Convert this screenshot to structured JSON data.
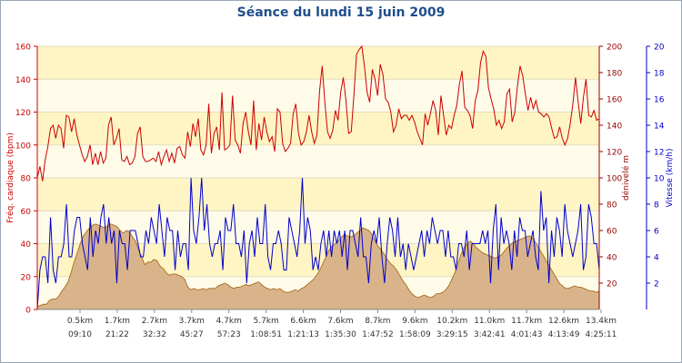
{
  "chart_data": {
    "type": "line",
    "title": "Séance du lundi 15 juin 2009",
    "x_labels": [
      {
        "distance": "0.5km",
        "time": "09:10"
      },
      {
        "distance": "1.7km",
        "time": "21:22"
      },
      {
        "distance": "2.7km",
        "time": "32:32"
      },
      {
        "distance": "3.7km",
        "time": "45:27"
      },
      {
        "distance": "4.7km",
        "time": "57:23"
      },
      {
        "distance": "5.7km",
        "time": "1:08:51"
      },
      {
        "distance": "6.6km",
        "time": "1:21:13"
      },
      {
        "distance": "7.6km",
        "time": "1:35:30"
      },
      {
        "distance": "8.7km",
        "time": "1:47:52"
      },
      {
        "distance": "9.6km",
        "time": "1:58:09"
      },
      {
        "distance": "10.2km",
        "time": "3:29:15"
      },
      {
        "distance": "11.0km",
        "time": "3:42:41"
      },
      {
        "distance": "11.7km",
        "time": "4:01:43"
      },
      {
        "distance": "12.6km",
        "time": "4:13:49"
      },
      {
        "distance": "13.4km",
        "time": "4:25:11"
      }
    ],
    "axes": {
      "left": {
        "label": "Fréq. cardiaque (bpm)",
        "min": 0,
        "max": 160,
        "ticks": [
          0,
          20,
          40,
          60,
          80,
          100,
          120,
          140,
          160
        ],
        "color": "#cc0000"
      },
      "right1": {
        "label": "dénivelé m",
        "min": 0,
        "max": 200,
        "ticks": [
          20,
          40,
          60,
          80,
          100,
          120,
          140,
          160,
          180,
          200
        ],
        "color": "#990000"
      },
      "right2": {
        "label": "Vitesse (km/h)",
        "min": 0,
        "max": 20,
        "ticks": [
          2,
          4,
          6,
          8,
          10,
          12,
          14,
          16,
          18,
          20
        ],
        "color": "#0000cc"
      }
    },
    "grid": true,
    "series": [
      {
        "axis": "left",
        "color": "#cc0000",
        "kind": "line",
        "values": [
          80,
          87,
          78,
          91,
          99,
          110,
          112,
          104,
          112,
          110,
          98,
          118,
          117,
          108,
          116,
          106,
          100,
          94,
          90,
          93,
          100,
          88,
          95,
          88,
          96,
          89,
          92,
          112,
          117,
          100,
          104,
          110,
          91,
          90,
          93,
          88,
          89,
          93,
          107,
          111,
          93,
          90,
          90,
          91,
          92,
          90,
          96,
          88,
          93,
          97,
          90,
          95,
          89,
          98,
          99,
          94,
          92,
          108,
          99,
          113,
          105,
          116,
          97,
          94,
          100,
          125,
          95,
          107,
          111,
          97,
          132,
          97,
          98,
          100,
          130,
          103,
          100,
          95,
          113,
          120,
          108,
          100,
          127,
          97,
          113,
          103,
          117,
          108,
          102,
          105,
          96,
          122,
          120,
          101,
          96,
          98,
          101,
          119,
          125,
          107,
          100,
          102,
          108,
          118,
          108,
          101,
          106,
          133,
          148,
          126,
          108,
          104,
          109,
          121,
          115,
          132,
          141,
          127,
          107,
          108,
          130,
          155,
          158,
          160,
          148,
          132,
          126,
          146,
          140,
          130,
          149,
          143,
          128,
          126,
          120,
          108,
          112,
          122,
          116,
          118,
          118,
          115,
          118,
          114,
          108,
          104,
          100,
          119,
          112,
          119,
          127,
          121,
          106,
          130,
          118,
          106,
          112,
          110,
          118,
          124,
          137,
          145,
          123,
          121,
          118,
          110,
          127,
          133,
          150,
          157,
          154,
          135,
          128,
          122,
          112,
          115,
          110,
          114,
          131,
          134,
          114,
          120,
          136,
          148,
          142,
          131,
          121,
          129,
          122,
          127,
          120,
          119,
          117,
          119,
          117,
          110,
          104,
          105,
          111,
          104,
          100,
          104,
          113,
          125,
          141,
          126,
          113,
          129,
          140,
          118,
          117,
          121,
          115,
          116
        ]
      },
      {
        "axis": "right1",
        "color": "#a06010",
        "fill": "#d9b48a",
        "kind": "area",
        "values": [
          2,
          3,
          4,
          4,
          7,
          8,
          8,
          10,
          14,
          17,
          21,
          28,
          36,
          43,
          50,
          56,
          59,
          62,
          64,
          65,
          64,
          63,
          62,
          64,
          65,
          64,
          63,
          60,
          58,
          60,
          59,
          55,
          52,
          45,
          40,
          34,
          36,
          36,
          38,
          37,
          33,
          31,
          28,
          26,
          27,
          27,
          26,
          25,
          23,
          17,
          15,
          16,
          15,
          15,
          16,
          15,
          16,
          16,
          16,
          18,
          19,
          20,
          19,
          17,
          16,
          17,
          17,
          18,
          19,
          18,
          19,
          20,
          21,
          19,
          17,
          16,
          15,
          16,
          15,
          16,
          14,
          13,
          13,
          14,
          15,
          14,
          16,
          17,
          19,
          21,
          23,
          26,
          30,
          35,
          40,
          45,
          48,
          50,
          52,
          55,
          57,
          56,
          55,
          56,
          58,
          60,
          62,
          61,
          60,
          57,
          52,
          48,
          45,
          42,
          38,
          35,
          33,
          30,
          26,
          22,
          19,
          15,
          12,
          10,
          9,
          10,
          11,
          10,
          9,
          10,
          12,
          12,
          13,
          15,
          18,
          23,
          28,
          35,
          42,
          47,
          50,
          52,
          50,
          47,
          45,
          43,
          42,
          41,
          40,
          39,
          40,
          41,
          44,
          47,
          49,
          51,
          52,
          53,
          54,
          55,
          56,
          55,
          52,
          48,
          44,
          40,
          36,
          32,
          28,
          24,
          20,
          18,
          16,
          16,
          17,
          18,
          17,
          17,
          16,
          15,
          14,
          14,
          13,
          14
        ]
      },
      {
        "axis": "right2",
        "color": "#0000cc",
        "kind": "line",
        "values": [
          0,
          3,
          4,
          4,
          2,
          7,
          3,
          2,
          4,
          4,
          5,
          8,
          4,
          4,
          6,
          7,
          7,
          5,
          4,
          3,
          7,
          4,
          6,
          5,
          7,
          8,
          5,
          7,
          5,
          6,
          2,
          6,
          5,
          5,
          3,
          6,
          6,
          6,
          5,
          4,
          4,
          6,
          5,
          7,
          6,
          5,
          8,
          6,
          4,
          7,
          6,
          6,
          3,
          6,
          4,
          5,
          5,
          3,
          10,
          6,
          5,
          7,
          10,
          6,
          8,
          5,
          4,
          5,
          5,
          6,
          3,
          7,
          6,
          6,
          8,
          5,
          5,
          4,
          6,
          2,
          5,
          6,
          4,
          7,
          5,
          5,
          8,
          4,
          3,
          5,
          5,
          6,
          5,
          3,
          3,
          7,
          6,
          5,
          4,
          6,
          10,
          5,
          7,
          6,
          3,
          4,
          3,
          5,
          6,
          4,
          6,
          4,
          6,
          5,
          6,
          4,
          6,
          3,
          6,
          6,
          5,
          4,
          7,
          4,
          4,
          2,
          5,
          6,
          5,
          7,
          4,
          2,
          5,
          7,
          6,
          4,
          7,
          4,
          5,
          3,
          5,
          4,
          3,
          4,
          5,
          6,
          4,
          6,
          5,
          7,
          6,
          5,
          6,
          6,
          4,
          6,
          4,
          4,
          3,
          5,
          5,
          4,
          6,
          3,
          5,
          5,
          5,
          5,
          6,
          5,
          6,
          2,
          6,
          8,
          3,
          7,
          5,
          6,
          5,
          3,
          6,
          4,
          7,
          6,
          6,
          4,
          5,
          6,
          4,
          3,
          9,
          6,
          7,
          2,
          6,
          4,
          7,
          6,
          4,
          8,
          6,
          5,
          4,
          5,
          6,
          8,
          3,
          4,
          8,
          7,
          5,
          5,
          3
        ]
      }
    ]
  }
}
